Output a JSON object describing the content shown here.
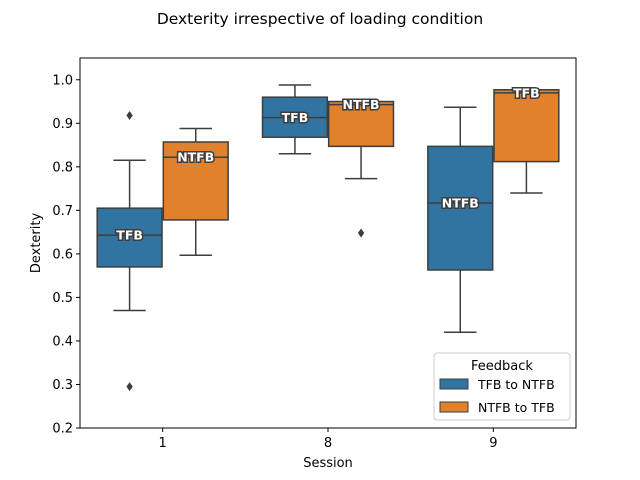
{
  "chart_data": {
    "type": "box",
    "title": "Dexterity irrespective of loading condition",
    "xlabel": "Session",
    "ylabel": "Dexterity",
    "categories": [
      "1",
      "8",
      "9"
    ],
    "ylim": [
      0.2,
      1.05
    ],
    "yticks": [
      "0.2",
      "0.3",
      "0.4",
      "0.5",
      "0.6",
      "0.7",
      "0.8",
      "0.9",
      "1.0"
    ],
    "grid": false,
    "legend": {
      "title": "Feedback",
      "position": "lower-right"
    },
    "series": [
      {
        "name": "TFB to NTFB",
        "color": "#3274a1",
        "boxes": [
          {
            "category": "1",
            "whisker_low": 0.47,
            "q1": 0.57,
            "median": 0.643,
            "q3": 0.705,
            "whisker_high": 0.815,
            "outliers": [
              0.295,
              0.918
            ],
            "label": "TFB"
          },
          {
            "category": "8",
            "whisker_low": 0.83,
            "q1": 0.868,
            "median": 0.913,
            "q3": 0.96,
            "whisker_high": 0.988,
            "outliers": [],
            "label": "TFB"
          },
          {
            "category": "9",
            "whisker_low": 0.42,
            "q1": 0.563,
            "median": 0.717,
            "q3": 0.847,
            "whisker_high": 0.937,
            "outliers": [],
            "label": "NTFB"
          }
        ]
      },
      {
        "name": "NTFB to TFB",
        "color": "#e1812c",
        "boxes": [
          {
            "category": "1",
            "whisker_low": 0.597,
            "q1": 0.678,
            "median": 0.822,
            "q3": 0.857,
            "whisker_high": 0.888,
            "outliers": [],
            "label": "NTFB"
          },
          {
            "category": "8",
            "whisker_low": 0.773,
            "q1": 0.847,
            "median": 0.943,
            "q3": 0.95,
            "whisker_high": 0.955,
            "outliers": [
              0.648
            ],
            "label": "NTFB"
          },
          {
            "category": "9",
            "whisker_low": 0.74,
            "q1": 0.812,
            "median": 0.97,
            "q3": 0.977,
            "whisker_high": 0.977,
            "outliers": [],
            "label": "TFB"
          }
        ]
      }
    ]
  }
}
